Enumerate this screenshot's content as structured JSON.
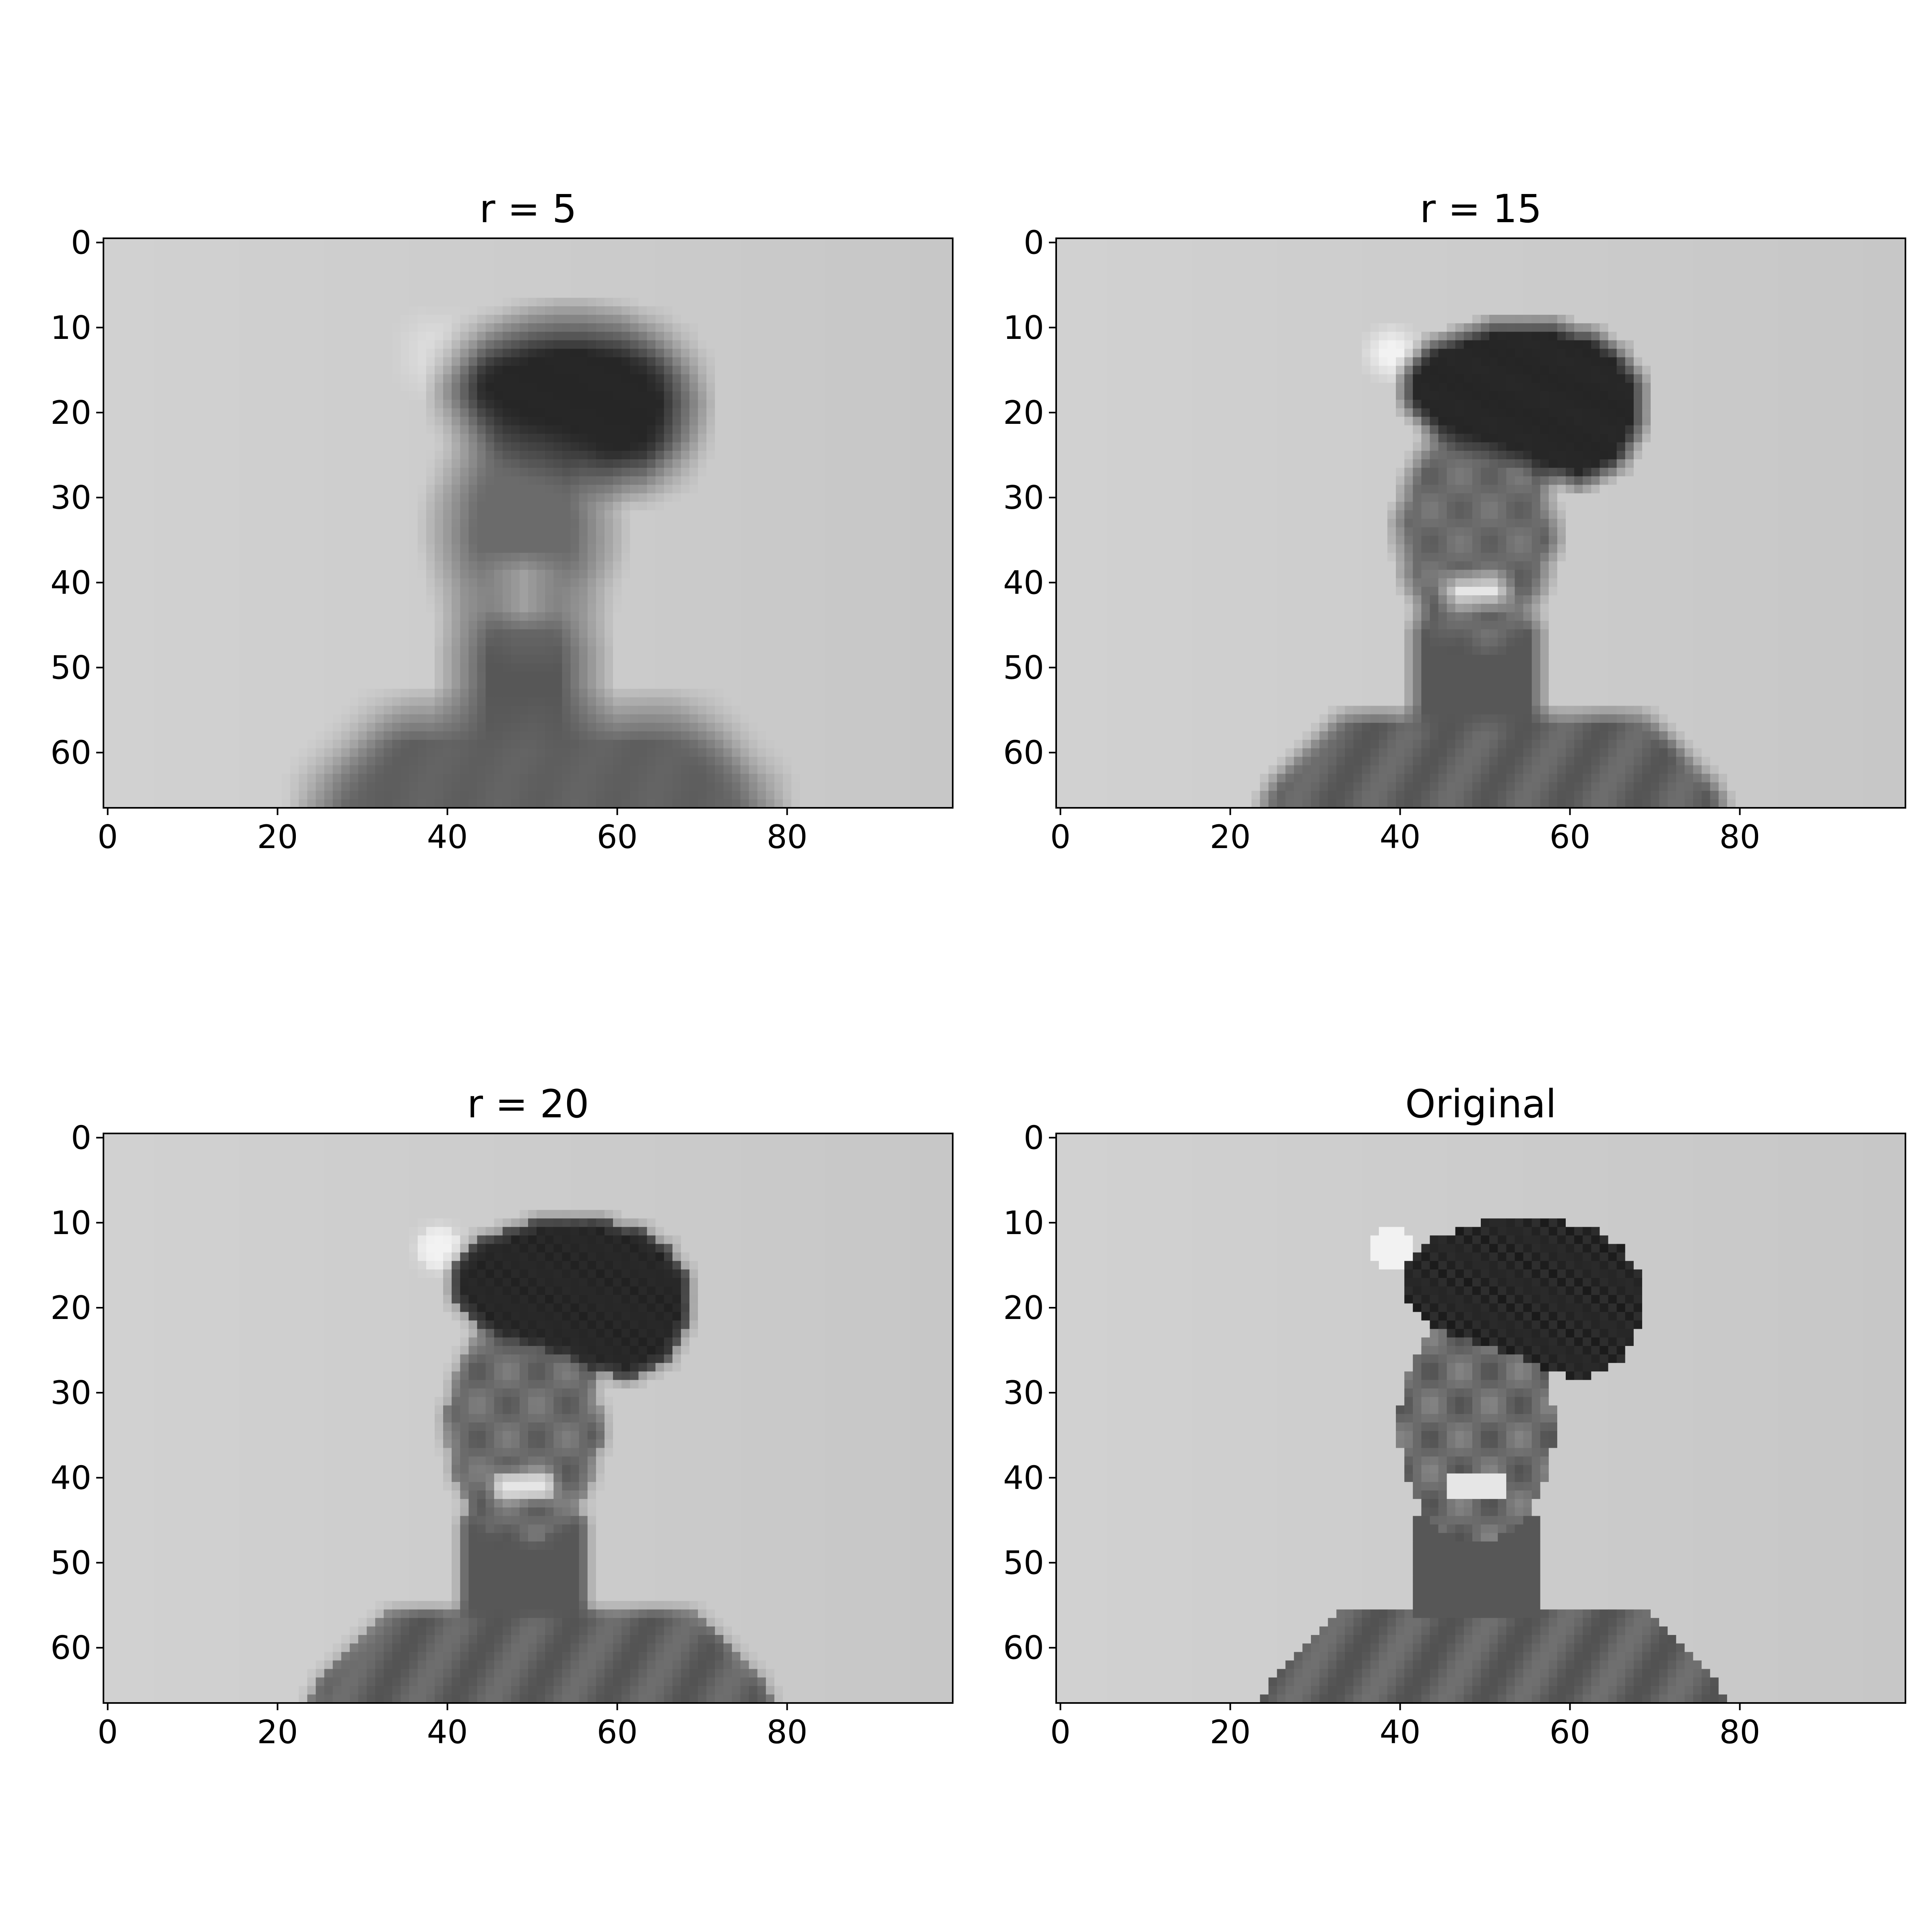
{
  "chart_data": [
    {
      "type": "heatmap",
      "title": "r = 5",
      "colormap": "gray",
      "x_ticks": [
        "0",
        "20",
        "40",
        "60",
        "80"
      ],
      "y_ticks": [
        "0",
        "10",
        "20",
        "30",
        "40",
        "50",
        "60"
      ],
      "xlim": [
        -0.5,
        99.5
      ],
      "ylim": [
        66.5,
        -0.5
      ],
      "image_rows": 67,
      "image_cols": 100,
      "rank": 5
    },
    {
      "type": "heatmap",
      "title": "r = 15",
      "colormap": "gray",
      "x_ticks": [
        "0",
        "20",
        "40",
        "60",
        "80"
      ],
      "y_ticks": [
        "0",
        "10",
        "20",
        "30",
        "40",
        "50",
        "60"
      ],
      "xlim": [
        -0.5,
        99.5
      ],
      "ylim": [
        66.5,
        -0.5
      ],
      "image_rows": 67,
      "image_cols": 100,
      "rank": 15
    },
    {
      "type": "heatmap",
      "title": "r = 20",
      "colormap": "gray",
      "x_ticks": [
        "0",
        "20",
        "40",
        "60",
        "80"
      ],
      "y_ticks": [
        "0",
        "10",
        "20",
        "30",
        "40",
        "50",
        "60"
      ],
      "xlim": [
        -0.5,
        99.5
      ],
      "ylim": [
        66.5,
        -0.5
      ],
      "image_rows": 67,
      "image_cols": 100,
      "rank": 20
    },
    {
      "type": "heatmap",
      "title": "Original",
      "colormap": "gray",
      "x_ticks": [
        "0",
        "20",
        "40",
        "60",
        "80"
      ],
      "y_ticks": [
        "0",
        "10",
        "20",
        "30",
        "40",
        "50",
        "60"
      ],
      "xlim": [
        -0.5,
        99.5
      ],
      "ylim": [
        66.5,
        -0.5
      ],
      "image_rows": 67,
      "image_cols": 100,
      "rank": null
    }
  ]
}
